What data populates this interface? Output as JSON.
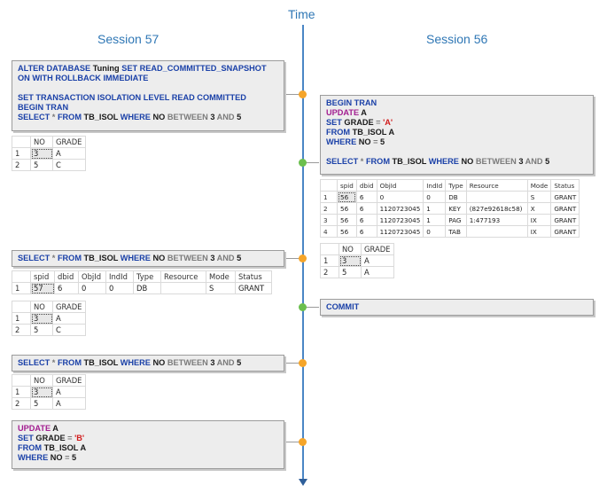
{
  "time_label": "Time",
  "session_left": "Session 57",
  "session_right": "Session 56",
  "box1": {
    "l1_kw1": "ALTER DATABASE",
    "l1_obj": " Tuning ",
    "l1_kw2": "SET READ_COMMITTED_SNAPSHOT",
    "l2_kw": "ON WITH ROLLBACK IMMEDIATE",
    "l4_kw": "SET TRANSACTION ISOLATION LEVEL READ COMMITTED",
    "l5_kw": "BEGIN TRAN",
    "l6_kw1": "SELECT",
    "l6_star": " * ",
    "l6_kw2": "FROM",
    "l6_obj": " TB_ISOL ",
    "l6_kw3": "WHERE",
    "l6_no": " NO ",
    "l6_between": "BETWEEN",
    "l6_n1": " 3 ",
    "l6_and": "AND",
    "l6_n2": " 5"
  },
  "box_right1": {
    "l1_kw": "BEGIN TRAN",
    "l2_kw": "UPDATE",
    "l2_obj": " A",
    "l3_kw": "SET",
    "l3_obj": " GRADE ",
    "l3_eq": "=",
    "l3_val": " 'A'",
    "l4_kw": "FROM",
    "l4_obj": " TB_ISOL A",
    "l5_kw": "WHERE",
    "l5_obj": " NO ",
    "l5_eq": "=",
    "l5_val": " 5",
    "l7_kw1": "SELECT",
    "l7_star": " * ",
    "l7_kw2": "FROM",
    "l7_obj": " TB_ISOL ",
    "l7_kw3": "WHERE",
    "l7_no": " NO ",
    "l7_between": "BETWEEN",
    "l7_n1": " 3 ",
    "l7_and": "AND",
    "l7_n2": " 5"
  },
  "select_stmt": {
    "kw1": "SELECT",
    "star": " * ",
    "kw2": "FROM",
    "obj": " TB_ISOL ",
    "kw3": "WHERE",
    "no": " NO ",
    "between": "BETWEEN",
    "n1": " 3 ",
    "and": "AND",
    "n2": " 5"
  },
  "commit_box": {
    "kw": "COMMIT"
  },
  "box_update_b": {
    "l1_kw": "UPDATE",
    "l1_obj": " A",
    "l2_kw": "SET",
    "l2_obj": " GRADE ",
    "l2_eq": "=",
    "l2_val": " 'B'",
    "l3_kw": "FROM",
    "l3_obj": " TB_ISOL A",
    "l4_kw": "WHERE",
    "l4_obj": " NO ",
    "l4_eq": "=",
    "l4_val": " 5"
  },
  "grade_header": [
    "",
    "NO",
    "GRADE"
  ],
  "grade_table_1": [
    [
      "1",
      "3",
      "A"
    ],
    [
      "2",
      "5",
      "C"
    ]
  ],
  "grade_table_2": [
    [
      "1",
      "3",
      "A"
    ],
    [
      "2",
      "5",
      "C"
    ]
  ],
  "grade_table_3": [
    [
      "1",
      "3",
      "A"
    ],
    [
      "2",
      "5",
      "A"
    ]
  ],
  "grade_table_right": [
    [
      "1",
      "3",
      "A"
    ],
    [
      "2",
      "5",
      "A"
    ]
  ],
  "lock_header_left": [
    "",
    "spid",
    "dbid",
    "ObjId",
    "IndId",
    "Type",
    "Resource",
    "Mode",
    "Status"
  ],
  "lock_rows_left": [
    [
      "1",
      "57",
      "6",
      "0",
      "0",
      "DB",
      "",
      "S",
      "GRANT"
    ]
  ],
  "lock_header_right": [
    "",
    "spid",
    "dbid",
    "ObjId",
    "IndId",
    "Type",
    "Resource",
    "Mode",
    "Status"
  ],
  "lock_rows_right": [
    [
      "1",
      "56",
      "6",
      "0",
      "0",
      "DB",
      "",
      "S",
      "GRANT"
    ],
    [
      "2",
      "56",
      "6",
      "1120723045",
      "1",
      "KEY",
      "(827e92618c58)",
      "X",
      "GRANT"
    ],
    [
      "3",
      "56",
      "6",
      "1120723045",
      "1",
      "PAG",
      "1:477193",
      "IX",
      "GRANT"
    ],
    [
      "4",
      "56",
      "6",
      "1120723045",
      "0",
      "TAB",
      "",
      "IX",
      "GRANT"
    ]
  ]
}
